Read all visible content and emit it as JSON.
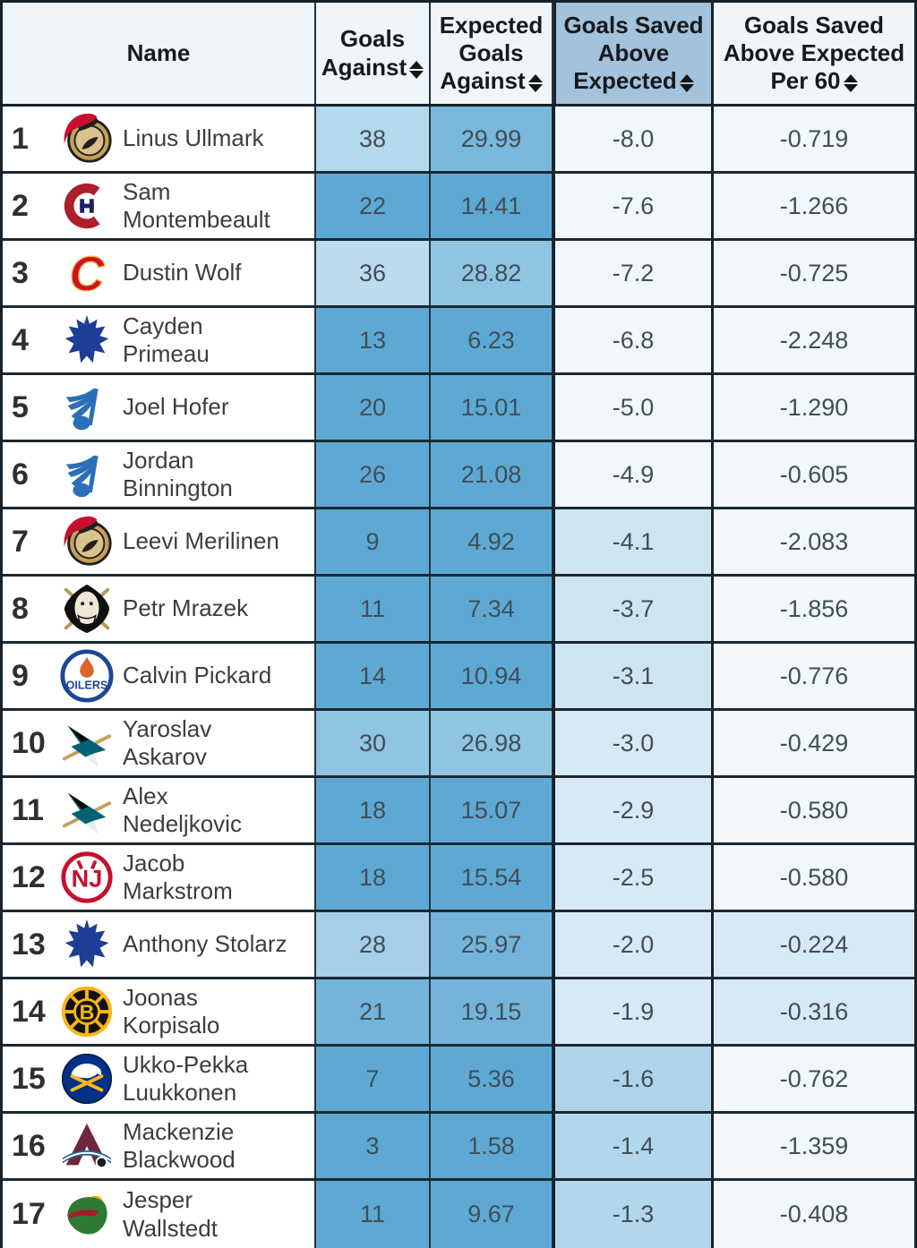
{
  "table": {
    "columns": [
      {
        "id": "name",
        "label": "Name",
        "sortable": false,
        "highlighted": false
      },
      {
        "id": "goals_against",
        "label": "Goals Against",
        "sortable": true,
        "highlighted": false
      },
      {
        "id": "expected_goals_against",
        "label": "Expected Goals Against",
        "sortable": true,
        "highlighted": false
      },
      {
        "id": "goals_saved_above_expected",
        "label": "Goals Saved Above Expected",
        "sortable": true,
        "highlighted": true
      },
      {
        "id": "goals_saved_above_expected_per60",
        "label": "Goals Saved Above Expected Per 60",
        "sortable": true,
        "highlighted": false
      }
    ],
    "rows": [
      {
        "rank": "1",
        "team": "ottawa-senators",
        "logo_icon": "ottawa-senators-logo",
        "player": "Linus Ullmark",
        "goals_against": "38",
        "expected_goals_against": "29.99",
        "gsax": "-8.0",
        "gsax_per60": "-0.719",
        "heat": {
          "ga": "#b4d8ec",
          "xga": "#79b7db",
          "gsax": "#f1f7fa",
          "gsax60": "#f1f7fa"
        }
      },
      {
        "rank": "2",
        "team": "montreal-canadiens",
        "logo_icon": "montreal-canadiens-logo",
        "player": "Sam Montembeault",
        "goals_against": "22",
        "expected_goals_against": "14.41",
        "gsax": "-7.6",
        "gsax_per60": "-1.266",
        "heat": {
          "ga": "#5ea9d4",
          "xga": "#5ea9d4",
          "gsax": "#f1f7fa",
          "gsax60": "#f1f7fa"
        }
      },
      {
        "rank": "3",
        "team": "calgary-flames",
        "logo_icon": "calgary-flames-logo",
        "player": "Dustin Wolf",
        "goals_against": "36",
        "expected_goals_against": "28.82",
        "gsax": "-7.2",
        "gsax_per60": "-0.725",
        "heat": {
          "ga": "#bcdcee",
          "xga": "#8fc4e2",
          "gsax": "#f1f7fa",
          "gsax60": "#f1f7fa"
        }
      },
      {
        "rank": "4",
        "team": "toronto-maple-leafs",
        "logo_icon": "toronto-maple-leafs-logo",
        "player": "Cayden Primeau",
        "goals_against": "13",
        "expected_goals_against": "6.23",
        "gsax": "-6.8",
        "gsax_per60": "-2.248",
        "heat": {
          "ga": "#5ea9d4",
          "xga": "#5ea9d4",
          "gsax": "#f1f7fa",
          "gsax60": "#f1f7fa"
        }
      },
      {
        "rank": "5",
        "team": "st-louis-blues",
        "logo_icon": "st-louis-blues-logo",
        "player": "Joel Hofer",
        "goals_against": "20",
        "expected_goals_against": "15.01",
        "gsax": "-5.0",
        "gsax_per60": "-1.290",
        "heat": {
          "ga": "#5ea9d4",
          "xga": "#5ea9d4",
          "gsax": "#f1f7fa",
          "gsax60": "#f1f7fa"
        }
      },
      {
        "rank": "6",
        "team": "st-louis-blues",
        "logo_icon": "st-louis-blues-logo",
        "player": "Jordan Binnington",
        "goals_against": "26",
        "expected_goals_against": "21.08",
        "gsax": "-4.9",
        "gsax_per60": "-0.605",
        "heat": {
          "ga": "#5ea9d4",
          "xga": "#5ea9d4",
          "gsax": "#f1f7fa",
          "gsax60": "#f1f7fa"
        }
      },
      {
        "rank": "7",
        "team": "ottawa-senators",
        "logo_icon": "ottawa-senators-logo",
        "player": "Leevi Merilinen",
        "goals_against": "9",
        "expected_goals_against": "4.92",
        "gsax": "-4.1",
        "gsax_per60": "-2.083",
        "heat": {
          "ga": "#5ea9d4",
          "xga": "#5ea9d4",
          "gsax": "#cee4f1",
          "gsax60": "#f1f7fa"
        }
      },
      {
        "rank": "8",
        "team": "anaheim-ducks",
        "logo_icon": "anaheim-ducks-logo",
        "player": "Petr Mrazek",
        "goals_against": "11",
        "expected_goals_against": "7.34",
        "gsax": "-3.7",
        "gsax_per60": "-1.856",
        "heat": {
          "ga": "#5ea9d4",
          "xga": "#5ea9d4",
          "gsax": "#cee4f1",
          "gsax60": "#f1f7fa"
        }
      },
      {
        "rank": "9",
        "team": "edmonton-oilers",
        "logo_icon": "edmonton-oilers-logo",
        "player": "Calvin Pickard",
        "goals_against": "14",
        "expected_goals_against": "10.94",
        "gsax": "-3.1",
        "gsax_per60": "-0.776",
        "heat": {
          "ga": "#5ea9d4",
          "xga": "#5ea9d4",
          "gsax": "#cee4f1",
          "gsax60": "#f1f7fa"
        }
      },
      {
        "rank": "10",
        "team": "san-jose-sharks",
        "logo_icon": "san-jose-sharks-logo",
        "player": "Yaroslav Askarov",
        "goals_against": "30",
        "expected_goals_against": "26.98",
        "gsax": "-3.0",
        "gsax_per60": "-0.429",
        "heat": {
          "ga": "#8fc4e2",
          "xga": "#8fc4e2",
          "gsax": "#d7e9f5",
          "gsax60": "#f1f7fa"
        }
      },
      {
        "rank": "11",
        "team": "san-jose-sharks",
        "logo_icon": "san-jose-sharks-logo",
        "player": "Alex Nedeljkovic",
        "goals_against": "18",
        "expected_goals_against": "15.07",
        "gsax": "-2.9",
        "gsax_per60": "-0.580",
        "heat": {
          "ga": "#5ea9d4",
          "xga": "#5ea9d4",
          "gsax": "#d7e9f5",
          "gsax60": "#f1f7fa"
        }
      },
      {
        "rank": "12",
        "team": "new-jersey-devils",
        "logo_icon": "new-jersey-devils-logo",
        "player": "Jacob Markstrom",
        "goals_against": "18",
        "expected_goals_against": "15.54",
        "gsax": "-2.5",
        "gsax_per60": "-0.580",
        "heat": {
          "ga": "#5ea9d4",
          "xga": "#5ea9d4",
          "gsax": "#d7e9f5",
          "gsax60": "#f1f7fa"
        }
      },
      {
        "rank": "13",
        "team": "toronto-maple-leafs",
        "logo_icon": "toronto-maple-leafs-logo",
        "player": "Anthony Stolarz",
        "goals_against": "28",
        "expected_goals_against": "25.97",
        "gsax": "-2.0",
        "gsax_per60": "-0.224",
        "heat": {
          "ga": "#a5cfe8",
          "xga": "#74b4da",
          "gsax": "#d7e9f5",
          "gsax60": "#d7e9f5"
        }
      },
      {
        "rank": "14",
        "team": "boston-bruins",
        "logo_icon": "boston-bruins-logo",
        "player": "Joonas Korpisalo",
        "goals_against": "21",
        "expected_goals_against": "19.15",
        "gsax": "-1.9",
        "gsax_per60": "-0.316",
        "heat": {
          "ga": "#74b4da",
          "xga": "#74b4da",
          "gsax": "#d7e9f5",
          "gsax60": "#d7e9f5"
        }
      },
      {
        "rank": "15",
        "team": "buffalo-sabres",
        "logo_icon": "buffalo-sabres-logo",
        "player": "Ukko-Pekka Luukkonen",
        "goals_against": "7",
        "expected_goals_against": "5.36",
        "gsax": "-1.6",
        "gsax_per60": "-0.762",
        "heat": {
          "ga": "#5ea9d4",
          "xga": "#5ea9d4",
          "gsax": "#aed4ea",
          "gsax60": "#f1f7fa"
        }
      },
      {
        "rank": "16",
        "team": "colorado-avalanche",
        "logo_icon": "colorado-avalanche-logo",
        "player": "Mackenzie Blackwood",
        "goals_against": "3",
        "expected_goals_against": "1.58",
        "gsax": "-1.4",
        "gsax_per60": "-1.359",
        "heat": {
          "ga": "#5ea9d4",
          "xga": "#5ea9d4",
          "gsax": "#b2d6ec",
          "gsax60": "#f1f7fa"
        }
      },
      {
        "rank": "17",
        "team": "minnesota-wild",
        "logo_icon": "minnesota-wild-logo",
        "player": "Jesper Wallstedt",
        "goals_against": "11",
        "expected_goals_against": "9.67",
        "gsax": "-1.3",
        "gsax_per60": "-0.408",
        "heat": {
          "ga": "#5ea9d4",
          "xga": "#5ea9d4",
          "gsax": "#b2d6ec",
          "gsax60": "#f1f7fa"
        }
      }
    ]
  },
  "colors": {
    "border_dark": "#15222c",
    "row_separator": "#1b2832",
    "header_bg": "#eff5f9",
    "header_highlight_bg": "#a3c2dc",
    "name_cell_bg": "#ffffff",
    "heat_medium_blue": "#5ea9d4",
    "heat_light_blue": "#aed4ea",
    "heat_pale_blue": "#d7e9f5",
    "heat_near_white": "#f1f7fa",
    "header_text": "#17191b",
    "number_text": "#3f4e58"
  }
}
